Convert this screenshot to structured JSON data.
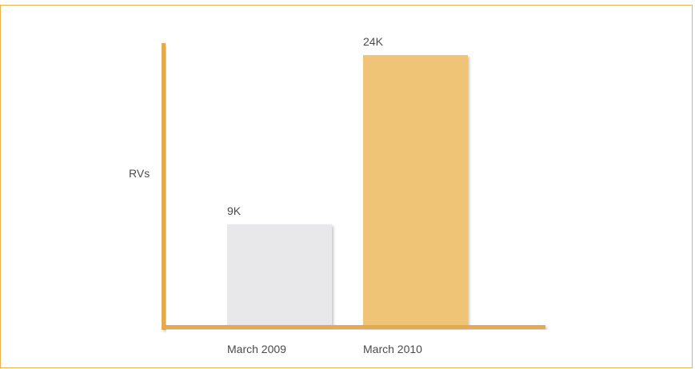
{
  "chart_data": {
    "type": "bar",
    "categories": [
      "March 2009",
      "March 2010"
    ],
    "values": [
      9000,
      24000
    ],
    "data_labels": [
      "9K",
      "24K"
    ],
    "title": "",
    "xlabel": "",
    "ylabel": "RVs",
    "ylim": [
      0,
      24000
    ],
    "grid": false,
    "legend": "none",
    "colors": {
      "bar_2009": "#e8e8ea",
      "bar_2010": "#f0c477",
      "axis": "#e6a94c",
      "frame": "#e9b24f",
      "text": "#4a4a4a"
    }
  }
}
